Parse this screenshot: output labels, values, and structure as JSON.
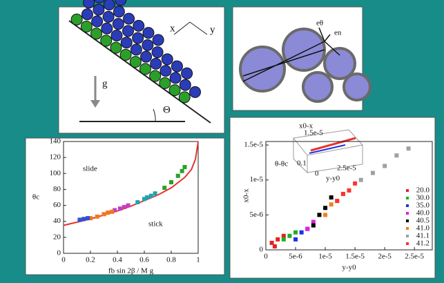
{
  "diagrams": {
    "incline": {
      "labels": [
        "g",
        "x",
        "y",
        "Θ"
      ]
    },
    "contacts": {
      "labels": [
        "eθ",
        "en"
      ]
    }
  },
  "inset": {
    "labels": [
      "x0-x",
      "1.5e-5",
      "θ-θc",
      "0.1",
      "0",
      "2.5e-5",
      "y-y0"
    ]
  },
  "chart_data": [
    {
      "type": "line",
      "xlabel": "fb sin 2β / M g",
      "ylabel": "θc",
      "annotations": [
        "slide",
        "stick"
      ],
      "xlim": [
        0,
        1
      ],
      "ylim": [
        0,
        140
      ],
      "xticks": [
        0,
        0.2,
        0.4,
        0.6,
        0.8,
        1
      ],
      "yticks": [
        0,
        20,
        40,
        60,
        80,
        100,
        120,
        140
      ],
      "series": [
        {
          "color": "#e8322a",
          "mode": "line",
          "x": [
            0,
            0.1,
            0.2,
            0.3,
            0.4,
            0.5,
            0.6,
            0.7,
            0.8,
            0.9,
            0.95,
            0.98,
            1
          ],
          "values": [
            35,
            39,
            43,
            48,
            53,
            59,
            66,
            73,
            82,
            95,
            105,
            118,
            140
          ]
        },
        {
          "color": "#2aa02a",
          "mode": "markers",
          "x": [
            0.75,
            0.8,
            0.85,
            0.88,
            0.9
          ],
          "values": [
            82,
            89,
            97,
            103,
            108
          ]
        },
        {
          "color": "#1fa5b0",
          "mode": "markers",
          "x": [
            0.55,
            0.6,
            0.62,
            0.65,
            0.68
          ],
          "values": [
            64,
            68,
            70,
            72,
            75
          ]
        },
        {
          "color": "#c040c0",
          "mode": "markers",
          "x": [
            0.38,
            0.42,
            0.45,
            0.48
          ],
          "values": [
            54,
            56,
            58,
            60
          ]
        },
        {
          "color": "#f07820",
          "mode": "markers",
          "x": [
            0.2,
            0.25,
            0.3,
            0.33,
            0.36
          ],
          "values": [
            44,
            46,
            49,
            51,
            52
          ]
        },
        {
          "color": "#3050d0",
          "mode": "markers",
          "x": [
            0.12,
            0.15,
            0.18
          ],
          "values": [
            42,
            43,
            44
          ]
        }
      ]
    },
    {
      "type": "scatter",
      "xlabel": "y-y0",
      "ylabel": "x0-x",
      "xlim": [
        0,
        2.8e-05
      ],
      "ylim": [
        0,
        1.55e-05
      ],
      "xticks": [
        0,
        {
          "value": 5e-06,
          "label": "5e-6"
        },
        {
          "value": 1e-05,
          "label": "1e-5"
        },
        {
          "value": 1.5e-05,
          "label": "1.5e-5"
        },
        {
          "value": 2e-05,
          "label": "2e-5"
        },
        {
          "value": 2.5e-05,
          "label": "2.5e-5"
        }
      ],
      "yticks": [
        0,
        {
          "value": 5e-06,
          "label": "5e-6"
        },
        {
          "value": 1e-05,
          "label": "1e-5"
        },
        {
          "value": 1.5e-05,
          "label": "1.5e-5"
        }
      ],
      "series": [
        {
          "name": "20.0",
          "color": "#e82020",
          "x": [
            1e-06,
            1.5e-06,
            2e-06,
            3e-06
          ],
          "values": [
            1e-06,
            5e-07,
            1.5e-06,
            2e-06
          ]
        },
        {
          "name": "30.0",
          "color": "#20b020",
          "x": [
            3e-06,
            4e-06,
            5e-06
          ],
          "values": [
            1.5e-06,
            2e-06,
            2.5e-06
          ]
        },
        {
          "name": "35.0",
          "color": "#2030e0",
          "x": [
            5e-06,
            6e-06,
            7e-06
          ],
          "values": [
            1.5e-06,
            2.5e-06,
            3e-06
          ]
        },
        {
          "name": "40.0",
          "color": "#e020e0",
          "x": [
            7e-06,
            8e-06
          ],
          "values": [
            3e-06,
            4e-06
          ]
        },
        {
          "name": "40.5",
          "color": "#000000",
          "x": [
            8e-06,
            9e-06,
            1e-05,
            1.1e-05
          ],
          "values": [
            3.5e-06,
            5e-06,
            6e-06,
            7.5e-06
          ]
        },
        {
          "name": "41.0",
          "color": "#f08020",
          "x": [
            1e-05,
            1.1e-05,
            1.2e-05,
            1.3e-05
          ],
          "values": [
            5e-06,
            6.5e-06,
            7e-06,
            8e-06
          ]
        },
        {
          "name": "41.1",
          "color": "#a0a0a0",
          "x": [
            1.6e-05,
            1.8e-05,
            2e-05,
            2.2e-05,
            2.4e-05
          ],
          "values": [
            1e-05,
            1.1e-05,
            1.2e-05,
            1.35e-05,
            1.45e-05
          ]
        },
        {
          "name": "41.2",
          "color": "#ff3030",
          "x": [
            1.2e-05,
            1.3e-05,
            1.4e-05,
            1.5e-05
          ],
          "values": [
            7e-06,
            8e-06,
            8.5e-06,
            9.5e-06
          ]
        }
      ]
    }
  ]
}
